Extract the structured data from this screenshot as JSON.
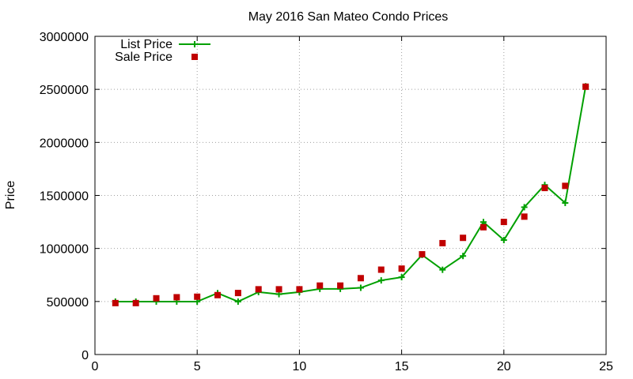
{
  "chart_data": {
    "type": "line",
    "title": "May 2016 San Mateo Condo Prices",
    "xlabel": "",
    "ylabel": "Price",
    "xlim": [
      0,
      25
    ],
    "ylim": [
      0,
      3000000
    ],
    "xticks": [
      "0",
      "5",
      "10",
      "15",
      "20",
      "25"
    ],
    "yticks": [
      "0",
      "500000",
      "1000000",
      "1500000",
      "2000000",
      "2500000",
      "3000000"
    ],
    "grid": true,
    "legend_position": "top-left",
    "series": [
      {
        "name": "List Price",
        "style": "linespoints",
        "marker": "plus",
        "color": "#00a000",
        "x": [
          1,
          2,
          3,
          4,
          5,
          6,
          7,
          8,
          9,
          10,
          11,
          12,
          13,
          14,
          15,
          16,
          17,
          18,
          19,
          20,
          21,
          22,
          23,
          24
        ],
        "y": [
          499000,
          499000,
          499000,
          499000,
          499000,
          579000,
          499000,
          589000,
          569000,
          589000,
          619000,
          619000,
          629000,
          699000,
          729000,
          939000,
          799000,
          929000,
          1249000,
          1079000,
          1389000,
          1599000,
          1429000,
          2529000
        ]
      },
      {
        "name": "Sale Price",
        "style": "points",
        "marker": "square",
        "color": "#c00000",
        "x": [
          1,
          2,
          3,
          4,
          5,
          6,
          7,
          8,
          9,
          10,
          11,
          12,
          13,
          14,
          15,
          16,
          17,
          18,
          19,
          20,
          21,
          22,
          23,
          24
        ],
        "y": [
          485000,
          485000,
          530000,
          540000,
          545000,
          560000,
          580000,
          615000,
          615000,
          615000,
          650000,
          650000,
          720000,
          800000,
          810000,
          945000,
          1050000,
          1100000,
          1200000,
          1250000,
          1300000,
          1570000,
          1590000,
          2525000
        ]
      }
    ]
  }
}
